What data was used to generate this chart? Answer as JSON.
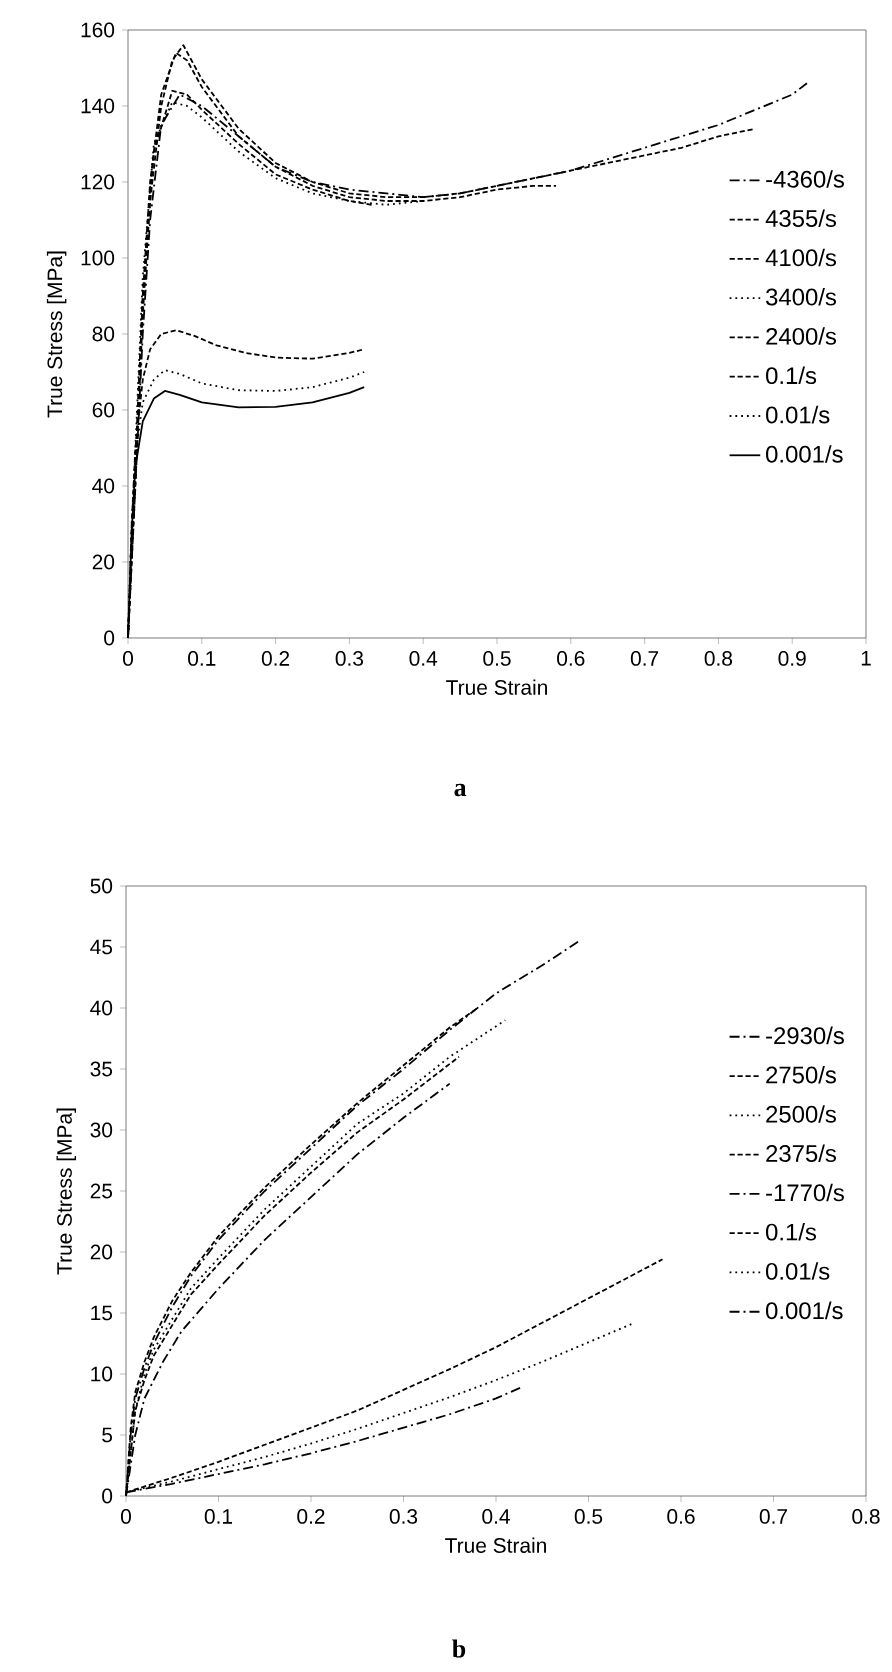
{
  "chart_data": [
    {
      "type": "line",
      "xlabel": "True Strain",
      "ylabel": "True Stress [MPa]",
      "annotations": [
        "a"
      ],
      "xlim": [
        0,
        1
      ],
      "ylim": [
        0,
        160
      ],
      "xticks": [
        0,
        0.1,
        0.2,
        0.3,
        0.4,
        0.5,
        0.6,
        0.7,
        0.8,
        0.9,
        1
      ],
      "yticks": [
        0,
        20,
        40,
        60,
        80,
        100,
        120,
        140,
        160
      ],
      "grid": false,
      "legend": "right",
      "series": [
        {
          "name": "-4360/s",
          "color": "#000000",
          "line_style": "dashdot",
          "x": [
            0,
            0.01,
            0.02,
            0.03,
            0.045,
            0.07,
            0.1,
            0.15,
            0.2,
            0.25,
            0.3,
            0.35,
            0.4,
            0.45,
            0.5,
            0.55,
            0.6,
            0.65,
            0.7,
            0.75,
            0.8,
            0.85,
            0.9,
            0.92
          ],
          "values": [
            0,
            40,
            80,
            110,
            135,
            143,
            140,
            132,
            124,
            120,
            118,
            117,
            116,
            117,
            119,
            121,
            123,
            126,
            129,
            132,
            135,
            139,
            143,
            146
          ]
        },
        {
          "name": "4355/s",
          "color": "#000000",
          "line_style": "dashed",
          "x": [
            0,
            0.01,
            0.02,
            0.03,
            0.045,
            0.06,
            0.075,
            0.1,
            0.15,
            0.2,
            0.25,
            0.3,
            0.35,
            0.4,
            0.45,
            0.5,
            0.55,
            0.6,
            0.65,
            0.7,
            0.75,
            0.8,
            0.85
          ],
          "values": [
            0,
            40,
            85,
            115,
            140,
            152,
            156,
            147,
            134,
            125,
            120,
            117,
            116,
            116,
            117,
            119,
            121,
            123,
            125,
            127,
            129,
            132,
            134
          ]
        },
        {
          "name": "4100/s",
          "color": "#000000",
          "line_style": "dashed",
          "x": [
            0,
            0.01,
            0.02,
            0.03,
            0.045,
            0.065,
            0.08,
            0.1,
            0.15,
            0.2,
            0.25,
            0.3,
            0.35,
            0.4,
            0.45,
            0.5,
            0.55,
            0.58
          ],
          "values": [
            0,
            45,
            90,
            120,
            143,
            154,
            152,
            145,
            132,
            124,
            119,
            116,
            115,
            115,
            116,
            118,
            119,
            119
          ]
        },
        {
          "name": "3400/s",
          "color": "#000000",
          "line_style": "dotted",
          "x": [
            0,
            0.01,
            0.02,
            0.035,
            0.06,
            0.08,
            0.1,
            0.15,
            0.2,
            0.25,
            0.3,
            0.35,
            0.4
          ],
          "values": [
            0,
            50,
            95,
            130,
            141,
            140,
            137,
            128,
            121,
            117,
            115,
            114,
            115
          ]
        },
        {
          "name": "2400/s",
          "color": "#000000",
          "line_style": "dashed",
          "x": [
            0,
            0.01,
            0.02,
            0.035,
            0.06,
            0.08,
            0.1,
            0.15,
            0.2,
            0.25,
            0.3,
            0.33
          ],
          "values": [
            0,
            45,
            90,
            128,
            144,
            143,
            139,
            130,
            122,
            118,
            115,
            114
          ]
        },
        {
          "name": "0.1/s",
          "color": "#000000",
          "line_style": "dashed",
          "x": [
            0,
            0.005,
            0.01,
            0.02,
            0.03,
            0.045,
            0.065,
            0.09,
            0.12,
            0.16,
            0.2,
            0.25,
            0.3,
            0.32
          ],
          "values": [
            0,
            30,
            50,
            68,
            76,
            80,
            81,
            79.5,
            77,
            75,
            73.8,
            73.5,
            75,
            76
          ]
        },
        {
          "name": "0.01/s",
          "color": "#000000",
          "line_style": "dotted",
          "x": [
            0,
            0.005,
            0.01,
            0.02,
            0.035,
            0.05,
            0.07,
            0.1,
            0.15,
            0.2,
            0.25,
            0.3,
            0.32
          ],
          "values": [
            0,
            30,
            48,
            62,
            68,
            70.5,
            69.5,
            67,
            65.2,
            65,
            66,
            68.5,
            70
          ]
        },
        {
          "name": "0.001/s",
          "color": "#000000",
          "line_style": "solid",
          "x": [
            0,
            0.005,
            0.01,
            0.02,
            0.035,
            0.05,
            0.07,
            0.1,
            0.15,
            0.2,
            0.25,
            0.3,
            0.32
          ],
          "values": [
            0,
            28,
            45,
            57,
            63,
            65,
            64,
            62,
            60.7,
            60.8,
            62,
            64.5,
            66
          ]
        }
      ]
    },
    {
      "type": "line",
      "xlabel": "True Strain",
      "ylabel": "True Stress [MPa]",
      "annotations": [
        "b"
      ],
      "xlim": [
        0,
        0.8
      ],
      "ylim": [
        0,
        50
      ],
      "xticks": [
        0,
        0.1,
        0.2,
        0.3,
        0.4,
        0.5,
        0.6,
        0.7,
        0.8
      ],
      "yticks": [
        0,
        5,
        10,
        15,
        20,
        25,
        30,
        35,
        40,
        45,
        50
      ],
      "grid": false,
      "legend": "right",
      "series": [
        {
          "name": "-2930/s",
          "color": "#000000",
          "line_style": "dashdot",
          "x": [
            0,
            0.005,
            0.01,
            0.02,
            0.03,
            0.05,
            0.07,
            0.1,
            0.15,
            0.2,
            0.25,
            0.3,
            0.35,
            0.4,
            0.45,
            0.49
          ],
          "values": [
            0,
            5,
            8,
            10.5,
            12.5,
            15.5,
            18,
            21,
            25,
            28.5,
            32,
            35,
            38.2,
            41.2,
            43.5,
            45.5
          ]
        },
        {
          "name": "2750/s",
          "color": "#000000",
          "line_style": "dashed",
          "x": [
            0,
            0.005,
            0.01,
            0.02,
            0.03,
            0.05,
            0.07,
            0.1,
            0.15,
            0.2,
            0.25,
            0.3,
            0.35,
            0.38
          ],
          "values": [
            0,
            5.5,
            8.5,
            11,
            13,
            16,
            18.3,
            21.3,
            25.3,
            28.8,
            32.2,
            35.3,
            38.4,
            40
          ]
        },
        {
          "name": "2500/s",
          "color": "#000000",
          "line_style": "dotted",
          "x": [
            0,
            0.01,
            0.02,
            0.03,
            0.05,
            0.07,
            0.1,
            0.15,
            0.2,
            0.25,
            0.3,
            0.35,
            0.41
          ],
          "values": [
            0,
            7,
            10,
            12,
            14.5,
            17,
            19.5,
            23.5,
            27,
            30.5,
            33,
            36,
            39
          ]
        },
        {
          "name": "2375/s",
          "color": "#000000",
          "line_style": "dashed",
          "x": [
            0,
            0.01,
            0.02,
            0.03,
            0.05,
            0.07,
            0.1,
            0.15,
            0.2,
            0.25,
            0.3,
            0.36
          ],
          "values": [
            0,
            7,
            9.5,
            11.5,
            14,
            16.5,
            19,
            23,
            26.5,
            29.8,
            32.5,
            36
          ]
        },
        {
          "name": "-1770/s",
          "color": "#000000",
          "line_style": "dashdot",
          "x": [
            0,
            0.01,
            0.02,
            0.04,
            0.06,
            0.1,
            0.15,
            0.2,
            0.25,
            0.3,
            0.35
          ],
          "values": [
            0,
            5,
            8,
            11,
            13.5,
            17,
            21,
            24.5,
            28,
            31,
            33.8
          ]
        },
        {
          "name": "0.1/s",
          "color": "#000000",
          "line_style": "dashed",
          "x": [
            0,
            0.05,
            0.1,
            0.15,
            0.2,
            0.25,
            0.3,
            0.35,
            0.4,
            0.45,
            0.5,
            0.55,
            0.58
          ],
          "values": [
            0.3,
            1.5,
            2.8,
            4.2,
            5.6,
            7,
            8.7,
            10.4,
            12.2,
            14.2,
            16.2,
            18.2,
            19.4
          ]
        },
        {
          "name": "0.01/s",
          "color": "#000000",
          "line_style": "dotted",
          "x": [
            0,
            0.05,
            0.1,
            0.15,
            0.2,
            0.25,
            0.3,
            0.35,
            0.4,
            0.45,
            0.5,
            0.55
          ],
          "values": [
            0.3,
            1.2,
            2.2,
            3.2,
            4.3,
            5.5,
            6.8,
            8.1,
            9.5,
            11,
            12.6,
            14.2
          ]
        },
        {
          "name": "0.001/s",
          "color": "#000000",
          "line_style": "dashdot",
          "x": [
            0,
            0.05,
            0.1,
            0.15,
            0.2,
            0.25,
            0.3,
            0.35,
            0.4,
            0.43
          ],
          "values": [
            0.3,
            1,
            1.8,
            2.6,
            3.5,
            4.5,
            5.6,
            6.7,
            8,
            9
          ]
        }
      ]
    }
  ]
}
